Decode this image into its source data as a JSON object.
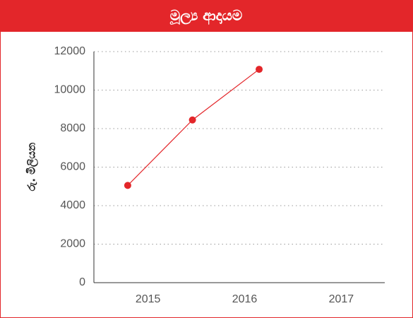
{
  "chart_data": {
    "type": "line",
    "title": "මූල්‍ය ආදායම",
    "y_label": "රු. මිලියන",
    "x": [
      2014.79,
      2015.46,
      2016.15
    ],
    "series": [
      {
        "name": null,
        "color": "#e3262a",
        "values": [
          5050,
          8450,
          11080
        ]
      }
    ],
    "xlim": [
      2014.44,
      2017.45
    ],
    "xticks": [
      2015,
      2016,
      2017
    ],
    "ylim": [
      0,
      12000
    ],
    "yticks": [
      0,
      2000,
      4000,
      6000,
      8000,
      10000,
      12000
    ],
    "grid": true
  }
}
